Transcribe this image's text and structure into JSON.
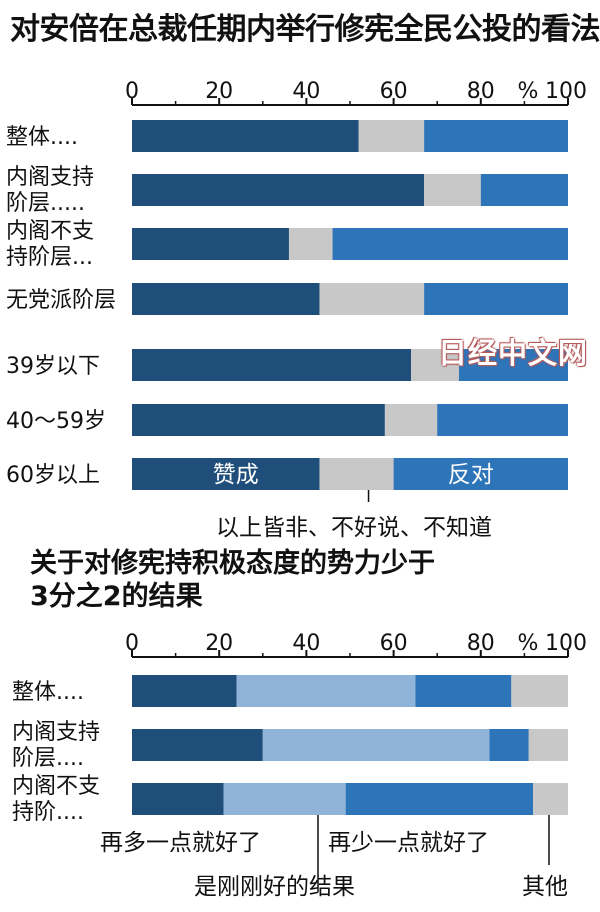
{
  "title": "对安倍在总裁任期内举行修宪全民公投的看法",
  "title2_line1": "关于对修宪持积极态度的势力少于",
  "title2_line2": "3分之2的结果",
  "watermark": "日经中文网",
  "chart_data": [
    {
      "type": "bar",
      "orientation": "horizontal",
      "stacked": true,
      "percent_symbol": "%",
      "xlim": [
        0,
        100
      ],
      "xticks": [
        "0",
        "20",
        "40",
        "60",
        "80",
        "100"
      ],
      "categories": [
        [
          "整体...."
        ],
        [
          "内阁支持",
          "阶层....."
        ],
        [
          "内阁不支",
          "持阶层..."
        ],
        [
          "无党派阶层"
        ],
        [
          "39岁以下"
        ],
        [
          "40～59岁"
        ],
        [
          "60岁以上"
        ]
      ],
      "series": [
        {
          "name": "赞成",
          "color": "#1f4e7a",
          "values": [
            52,
            67,
            36,
            43,
            64,
            58,
            43
          ]
        },
        {
          "name": "以上皆非、不好说、不知道",
          "color": "#c8c8c8",
          "values": [
            15,
            13,
            10,
            24,
            11,
            12,
            17
          ]
        },
        {
          "name": "反对",
          "color": "#2e74b8",
          "values": [
            33,
            20,
            54,
            33,
            25,
            30,
            40
          ]
        }
      ],
      "inline_labels": [
        "赞成",
        "反对"
      ],
      "callout_label": "以上皆非、不好说、不知道"
    },
    {
      "type": "bar",
      "orientation": "horizontal",
      "stacked": true,
      "percent_symbol": "%",
      "xlim": [
        0,
        100
      ],
      "xticks": [
        "0",
        "20",
        "40",
        "60",
        "80",
        "100"
      ],
      "categories": [
        [
          "整体...."
        ],
        [
          "内阁支持",
          "阶层...."
        ],
        [
          "内阁不支",
          "持阶...."
        ]
      ],
      "series": [
        {
          "name": "再多一点就好了",
          "color": "#1f4e7a",
          "values": [
            24,
            30,
            21
          ]
        },
        {
          "name": "是刚刚好的结果",
          "color": "#8fb3d9",
          "values": [
            41,
            52,
            28
          ]
        },
        {
          "name": "再少一点就好了",
          "color": "#2e74b8",
          "values": [
            22,
            9,
            43
          ]
        },
        {
          "name": "其他",
          "color": "#c8c8c8",
          "values": [
            13,
            9,
            8
          ]
        }
      ]
    }
  ]
}
